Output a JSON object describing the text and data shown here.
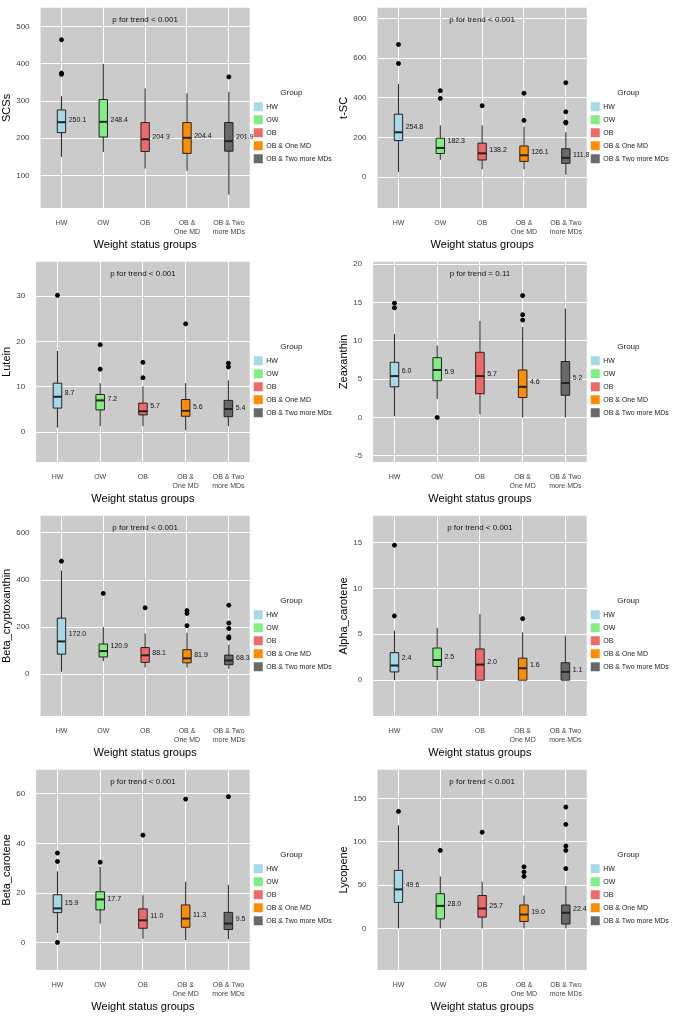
{
  "chart_data": [
    {
      "type": "box",
      "ylabel": "SCSs",
      "xlabel": "Weight status groups",
      "legend_title": "Group",
      "legend": "right",
      "grid": true,
      "categories": [
        "HW",
        "OW",
        "OB",
        "OB & One MD",
        "OB & Two more MDs"
      ],
      "ylim": [
        12,
        551
      ],
      "yticks": [
        100,
        200,
        300,
        400,
        500
      ],
      "series": [
        {
          "name": "HW",
          "color": "#a6d8e8",
          "boxes": [
            {
              "low": 150,
              "q1": 215,
              "median": 243,
              "q3": 276,
              "high": 313,
              "outliers": [
                465,
                375,
                372
              ]
            },
            null,
            null,
            null,
            null
          ]
        },
        {
          "name": "OW",
          "color": "#80ee80",
          "boxes": [
            null,
            {
              "low": 163,
              "q1": 203,
              "median": 244,
              "q3": 304,
              "high": 400
            },
            null,
            null,
            null
          ]
        },
        {
          "name": "OB",
          "color": "#ee6a6a",
          "boxes": [
            null,
            null,
            {
              "low": 118,
              "q1": 164,
              "median": 197,
              "q3": 242,
              "high": 334
            },
            null,
            null
          ]
        },
        {
          "name": "OB & One MD",
          "color": "#ff8c00",
          "boxes": [
            null,
            null,
            null,
            {
              "low": 112,
              "q1": 159,
              "median": 201,
              "q3": 242,
              "high": 321
            },
            null
          ]
        },
        {
          "name": "OB & Two more MDs",
          "color": "#696969",
          "boxes": [
            null,
            null,
            null,
            null,
            {
              "low": 48,
              "q1": 165,
              "median": 192,
              "q3": 242,
              "high": 325,
              "outliers": [
                365
              ]
            }
          ]
        }
      ],
      "annotations": [
        "p for trend < 0.001",
        {
          "text": "250.1",
          "x": "HW",
          "y": 250.1
        },
        {
          "text": "248.4",
          "x": "OW",
          "y": 248.4
        },
        {
          "text": "204.3",
          "x": "OB",
          "y": 204.3
        },
        {
          "text": "204.4",
          "x": "OB & One MD",
          "y": 204.4
        },
        {
          "text": "201.9",
          "x": "OB & Two more MDs",
          "y": 201.9
        }
      ]
    },
    {
      "type": "box",
      "ylabel": "t-SC",
      "xlabel": "Weight status groups",
      "legend_title": "Group",
      "legend": "right",
      "grid": true,
      "categories": [
        "HW",
        "OW",
        "OB",
        "OB & One MD",
        "OB & Two more MDs"
      ],
      "ylim": [
        -156,
        854
      ],
      "yticks": [
        0,
        200,
        400,
        600,
        800
      ],
      "series": [
        {
          "name": "HW",
          "color": "#a6d8e8",
          "boxes": [
            {
              "low": 26,
              "q1": 184,
              "median": 226,
              "q3": 317,
              "high": 469,
              "outliers": [
                669,
                573
              ]
            },
            null,
            null,
            null,
            null
          ]
        },
        {
          "name": "OW",
          "color": "#80ee80",
          "boxes": [
            null,
            {
              "low": 87,
              "q1": 119,
              "median": 147,
              "q3": 196,
              "high": 261,
              "outliers": [
                397,
                436
              ]
            },
            null,
            null,
            null
          ]
        },
        {
          "name": "OB",
          "color": "#ee6a6a",
          "boxes": [
            null,
            null,
            {
              "low": 40,
              "q1": 86,
              "median": 120,
              "q3": 171,
              "high": 261,
              "outliers": [
                360
              ]
            },
            null,
            null
          ]
        },
        {
          "name": "OB & One MD",
          "color": "#ff8c00",
          "boxes": [
            null,
            null,
            null,
            {
              "low": 40,
              "q1": 79,
              "median": 110,
              "q3": 157,
              "high": 254,
              "outliers": [
                286,
                423
              ]
            },
            null
          ]
        },
        {
          "name": "OB & Two more MDs",
          "color": "#696969",
          "boxes": [
            null,
            null,
            null,
            null,
            {
              "low": 11,
              "q1": 69,
              "median": 97,
              "q3": 143,
              "high": 226,
              "outliers": [
                476,
                329,
                277,
                273
              ]
            }
          ]
        }
      ],
      "annotations": [
        "p for trend < 0.001",
        {
          "text": "254.8",
          "x": "HW",
          "y": 254.8
        },
        {
          "text": "182.3",
          "x": "OW",
          "y": 182.3
        },
        {
          "text": "138.2",
          "x": "OB",
          "y": 138.2
        },
        {
          "text": "126.1",
          "x": "OB & One MD",
          "y": 126.1
        },
        {
          "text": "111.8",
          "x": "OB & Two more MDs",
          "y": 111.8
        }
      ]
    },
    {
      "type": "box",
      "ylabel": "Lutein",
      "xlabel": "Weight status groups",
      "legend_title": "Group",
      "legend": "right",
      "grid": true,
      "categories": [
        "HW",
        "OW",
        "OB",
        "OB & One MD",
        "OB & Two more MDs"
      ],
      "ylim": [
        -6.6,
        37.6
      ],
      "yticks": [
        0,
        10,
        20,
        30
      ],
      "series": [
        {
          "name": "HW",
          "color": "#a6d8e8",
          "boxes": [
            {
              "low": 1.0,
              "q1": 5.3,
              "median": 7.8,
              "q3": 10.8,
              "high": 17.9,
              "outliers": [
                30.2
              ]
            },
            null,
            null,
            null,
            null
          ]
        },
        {
          "name": "OW",
          "color": "#80ee80",
          "boxes": [
            null,
            {
              "low": 1.3,
              "q1": 4.9,
              "median": 7.0,
              "q3": 8.3,
              "high": 10.8,
              "outliers": [
                13.9,
                19.3
              ]
            },
            null,
            null,
            null
          ]
        },
        {
          "name": "OB",
          "color": "#ee6a6a",
          "boxes": [
            null,
            null,
            {
              "low": 1.3,
              "q1": 3.8,
              "median": 4.6,
              "q3": 6.4,
              "high": 10.1,
              "outliers": [
                12.0,
                15.4
              ]
            },
            null,
            null
          ]
        },
        {
          "name": "OB & One MD",
          "color": "#ff8c00",
          "boxes": [
            null,
            null,
            null,
            {
              "low": 0.4,
              "q1": 3.5,
              "median": 4.7,
              "q3": 7.2,
              "high": 10.8,
              "outliers": [
                23.9
              ]
            },
            null
          ]
        },
        {
          "name": "OB & Two more MDs",
          "color": "#696969",
          "boxes": [
            null,
            null,
            null,
            null,
            {
              "low": 1.3,
              "q1": 3.4,
              "median": 5.1,
              "q3": 7.0,
              "high": 11.4,
              "outliers": [
                15.2,
                14.4
              ]
            }
          ]
        }
      ],
      "annotations": [
        "p for trend < 0.001",
        {
          "text": "8.7",
          "x": "HW",
          "y": 8.7
        },
        {
          "text": "7.2",
          "x": "OW",
          "y": 7.2
        },
        {
          "text": "5.7",
          "x": "OB",
          "y": 5.7
        },
        {
          "text": "5.6",
          "x": "OB & One MD",
          "y": 5.6
        },
        {
          "text": "5.4",
          "x": "OB & Two more MDs",
          "y": 5.4
        }
      ]
    },
    {
      "type": "box",
      "ylabel": "Zeaxanthin",
      "xlabel": "Weight status groups",
      "legend_title": "Group",
      "legend": "right",
      "grid": true,
      "categories": [
        "HW",
        "OW",
        "OB",
        "OB & One MD",
        "OB & Two more MDs"
      ],
      "ylim": [
        -5.8,
        20.3
      ],
      "yticks": [
        -5,
        0,
        5,
        10,
        15,
        20
      ],
      "series": [
        {
          "name": "HW",
          "color": "#a6d8e8",
          "boxes": [
            {
              "low": 0.2,
              "q1": 4.0,
              "median": 5.4,
              "q3": 7.2,
              "high": 10.9,
              "outliers": [
                14.9,
                14.3
              ]
            },
            null,
            null,
            null,
            null
          ]
        },
        {
          "name": "OW",
          "color": "#80ee80",
          "boxes": [
            null,
            {
              "low": 2.4,
              "q1": 4.8,
              "median": 6.2,
              "q3": 7.8,
              "high": 9.4,
              "outliers": [
                0
              ]
            },
            null,
            null,
            null
          ]
        },
        {
          "name": "OB",
          "color": "#ee6a6a",
          "boxes": [
            null,
            null,
            {
              "low": 0.4,
              "q1": 3.1,
              "median": 5.4,
              "q3": 8.5,
              "high": 12.6
            },
            null,
            null
          ]
        },
        {
          "name": "OB & One MD",
          "color": "#ff8c00",
          "boxes": [
            null,
            null,
            null,
            {
              "low": 0,
              "q1": 2.6,
              "median": 4.0,
              "q3": 6.2,
              "high": 11.8,
              "outliers": [
                15.9,
                13.4,
                12.7
              ]
            },
            null
          ]
        },
        {
          "name": "OB & Two more MDs",
          "color": "#696969",
          "boxes": [
            null,
            null,
            null,
            null,
            {
              "low": 0,
              "q1": 2.9,
              "median": 4.5,
              "q3": 7.3,
              "high": 14.2
            }
          ]
        }
      ],
      "annotations": [
        "p for trend = 0.11",
        {
          "text": "6.0",
          "x": "HW",
          "y": 6.0
        },
        {
          "text": "5.9",
          "x": "OW",
          "y": 5.9
        },
        {
          "text": "5.7",
          "x": "OB",
          "y": 5.7
        },
        {
          "text": "4.6",
          "x": "OB & One MD",
          "y": 4.6
        },
        {
          "text": "5.2",
          "x": "OB & Two more MDs",
          "y": 5.2
        }
      ]
    },
    {
      "type": "box",
      "ylabel": "Beta_cryptoxanthin",
      "xlabel": "Weight status groups",
      "legend_title": "Group",
      "legend": "right",
      "grid": true,
      "categories": [
        "HW",
        "OW",
        "OB",
        "OB & One MD",
        "OB & Two more MDs"
      ],
      "ylim": [
        -178,
        673
      ],
      "yticks": [
        0,
        200,
        400,
        600
      ],
      "series": [
        {
          "name": "HW",
          "color": "#a6d8e8",
          "boxes": [
            {
              "low": 10,
              "q1": 85,
              "median": 139,
              "q3": 238,
              "high": 440,
              "outliers": [
                480
              ]
            },
            null,
            null,
            null,
            null
          ]
        },
        {
          "name": "OW",
          "color": "#80ee80",
          "boxes": [
            null,
            {
              "low": 55,
              "q1": 73,
              "median": 98,
              "q3": 128,
              "high": 200,
              "outliers": [
                343
              ]
            },
            null,
            null,
            null
          ]
        },
        {
          "name": "OB",
          "color": "#ee6a6a",
          "boxes": [
            null,
            null,
            {
              "low": 28,
              "q1": 50,
              "median": 80,
              "q3": 113,
              "high": 173,
              "outliers": [
                282
              ]
            },
            null,
            null
          ]
        },
        {
          "name": "OB & One MD",
          "color": "#ff8c00",
          "boxes": [
            null,
            null,
            null,
            {
              "low": 28,
              "q1": 48,
              "median": 67,
              "q3": 104,
              "high": 176,
              "outliers": [
                270,
                258,
                206
              ]
            },
            null
          ]
        },
        {
          "name": "OB & Two more MDs",
          "color": "#696969",
          "boxes": [
            null,
            null,
            null,
            null,
            {
              "low": 22,
              "q1": 40,
              "median": 58,
              "q3": 81,
              "high": 125,
              "outliers": [
                293,
                217,
                194,
                159,
                153
              ]
            }
          ]
        }
      ],
      "annotations": [
        "p for trend < 0.001",
        {
          "text": "172.0",
          "x": "HW",
          "y": 172.0
        },
        {
          "text": "120.9",
          "x": "OW",
          "y": 120.9
        },
        {
          "text": "88.1",
          "x": "OB",
          "y": 88.1
        },
        {
          "text": "81.9",
          "x": "OB & One MD",
          "y": 81.9
        },
        {
          "text": "68.3",
          "x": "OB & Two more MDs",
          "y": 68.3
        }
      ]
    },
    {
      "type": "box",
      "ylabel": "Alpha_carotene",
      "xlabel": "Weight status groups",
      "legend_title": "Group",
      "legend": "right",
      "grid": true,
      "categories": [
        "HW",
        "OW",
        "OB",
        "OB & One MD",
        "OB & Two more MDs"
      ],
      "ylim": [
        -3.9,
        17.9
      ],
      "yticks": [
        0,
        5,
        10,
        15
      ],
      "series": [
        {
          "name": "HW",
          "color": "#a6d8e8",
          "boxes": [
            {
              "low": 0,
              "q1": 0.9,
              "median": 1.6,
              "q3": 3.0,
              "high": 5.4,
              "outliers": [
                7.0,
                14.7
              ]
            },
            null,
            null,
            null,
            null
          ]
        },
        {
          "name": "OW",
          "color": "#80ee80",
          "boxes": [
            null,
            {
              "low": 0,
              "q1": 1.5,
              "median": 2.2,
              "q3": 3.5,
              "high": 5.7
            },
            null,
            null,
            null
          ]
        },
        {
          "name": "OB",
          "color": "#ee6a6a",
          "boxes": [
            null,
            null,
            {
              "low": 0,
              "q1": 0,
              "median": 1.7,
              "q3": 3.4,
              "high": 7.2
            },
            null,
            null
          ]
        },
        {
          "name": "OB & One MD",
          "color": "#ff8c00",
          "boxes": [
            null,
            null,
            null,
            {
              "low": 0,
              "q1": 0,
              "median": 1.3,
              "q3": 2.4,
              "high": 5.2,
              "outliers": [
                6.7
              ]
            },
            null
          ]
        },
        {
          "name": "OB & Two more MDs",
          "color": "#696969",
          "boxes": [
            null,
            null,
            null,
            null,
            {
              "low": 0,
              "q1": 0,
              "median": 0.9,
              "q3": 1.9,
              "high": 4.8
            }
          ]
        }
      ],
      "annotations": [
        "p for trend < 0.001",
        {
          "text": "2.4",
          "x": "HW",
          "y": 2.4
        },
        {
          "text": "2.5",
          "x": "OW",
          "y": 2.5
        },
        {
          "text": "2.0",
          "x": "OB",
          "y": 2.0
        },
        {
          "text": "1.6",
          "x": "OB & One MD",
          "y": 1.6
        },
        {
          "text": "1.1",
          "x": "OB & Two more MDs",
          "y": 1.1
        }
      ]
    },
    {
      "type": "box",
      "ylabel": "Beta_carotene",
      "xlabel": "Weight status groups",
      "legend_title": "Group",
      "legend": "right",
      "grid": true,
      "categories": [
        "HW",
        "OW",
        "OB",
        "OB & One MD",
        "OB & Two more MDs"
      ],
      "ylim": [
        -10.9,
        69.7
      ],
      "yticks": [
        0,
        20,
        40,
        60
      ],
      "series": [
        {
          "name": "HW",
          "color": "#a6d8e8",
          "boxes": [
            {
              "low": 4.0,
              "q1": 12.2,
              "median": 13.9,
              "q3": 19.4,
              "high": 28.8,
              "outliers": [
                36.2,
                32.8,
                0.2
              ]
            },
            null,
            null,
            null,
            null
          ]
        },
        {
          "name": "OW",
          "color": "#80ee80",
          "boxes": [
            null,
            {
              "low": 7.8,
              "q1": 13.3,
              "median": 17.5,
              "q3": 20.6,
              "high": 30.6,
              "outliers": [
                32.5
              ]
            },
            null,
            null,
            null
          ]
        },
        {
          "name": "OB",
          "color": "#ee6a6a",
          "boxes": [
            null,
            null,
            {
              "low": 1.7,
              "q1": 5.9,
              "median": 9.1,
              "q3": 13.7,
              "high": 19.2,
              "outliers": [
                43.4
              ]
            },
            null,
            null
          ]
        },
        {
          "name": "OB & One MD",
          "color": "#ff8c00",
          "boxes": [
            null,
            null,
            null,
            {
              "low": 1.1,
              "q1": 6.3,
              "median": 9.8,
              "q3": 15.3,
              "high": 24.6,
              "outliers": [
                57.9
              ]
            },
            null
          ]
        },
        {
          "name": "OB & Two more MDs",
          "color": "#696969",
          "boxes": [
            null,
            null,
            null,
            null,
            {
              "low": 1.4,
              "q1": 5.4,
              "median": 7.8,
              "q3": 12.3,
              "high": 23.4,
              "outliers": [
                58.9
              ]
            }
          ]
        }
      ],
      "annotations": [
        "p for trend < 0.001",
        {
          "text": "15.9",
          "x": "HW",
          "y": 15.9
        },
        {
          "text": "17.7",
          "x": "OW",
          "y": 17.7
        },
        {
          "text": "11.0",
          "x": "OB",
          "y": 11.0
        },
        {
          "text": "11.3",
          "x": "OB & One MD",
          "y": 11.3
        },
        {
          "text": "9.5",
          "x": "OB & Two more MDs",
          "y": 9.5
        }
      ]
    },
    {
      "type": "box",
      "ylabel": "Lycopene",
      "xlabel": "Weight status groups",
      "legend_title": "Group",
      "legend": "right",
      "grid": true,
      "categories": [
        "HW",
        "OW",
        "OB",
        "OB & One MD",
        "OB & Two more MDs"
      ],
      "ylim": [
        -48,
        183
      ],
      "yticks": [
        0,
        50,
        100,
        150
      ],
      "series": [
        {
          "name": "HW",
          "color": "#a6d8e8",
          "boxes": [
            {
              "low": 0,
              "q1": 30,
              "median": 45,
              "q3": 67,
              "high": 119,
              "outliers": [
                135
              ]
            },
            null,
            null,
            null,
            null
          ]
        },
        {
          "name": "OW",
          "color": "#80ee80",
          "boxes": [
            null,
            {
              "low": 0,
              "q1": 11,
              "median": 26,
              "q3": 40,
              "high": 60,
              "outliers": [
                90
              ]
            },
            null,
            null,
            null
          ]
        },
        {
          "name": "OB",
          "color": "#ee6a6a",
          "boxes": [
            null,
            null,
            {
              "low": 0,
              "q1": 13,
              "median": 23,
              "q3": 38,
              "high": 54,
              "outliers": [
                111
              ]
            },
            null,
            null
          ]
        },
        {
          "name": "OB & One MD",
          "color": "#ff8c00",
          "boxes": [
            null,
            null,
            null,
            {
              "low": 0,
              "q1": 8,
              "median": 16,
              "q3": 27,
              "high": 38,
              "outliers": [
                71,
                65,
                60
              ]
            },
            null
          ]
        },
        {
          "name": "OB & Two more MDs",
          "color": "#696969",
          "boxes": [
            null,
            null,
            null,
            null,
            {
              "low": 0,
              "q1": 5,
              "median": 18,
              "q3": 27,
              "high": 49,
              "outliers": [
                140,
                120,
                95,
                90,
                69
              ]
            }
          ]
        }
      ],
      "annotations": [
        "p for trend < 0.001",
        {
          "text": "49.6",
          "x": "HW",
          "y": 49.6
        },
        {
          "text": "28.0",
          "x": "OW",
          "y": 28.0
        },
        {
          "text": "25.7",
          "x": "OB",
          "y": 25.7
        },
        {
          "text": "19.0",
          "x": "OB & One MD",
          "y": 19.0
        },
        {
          "text": "22.4",
          "x": "OB & Two more MDs",
          "y": 22.4
        }
      ]
    }
  ]
}
